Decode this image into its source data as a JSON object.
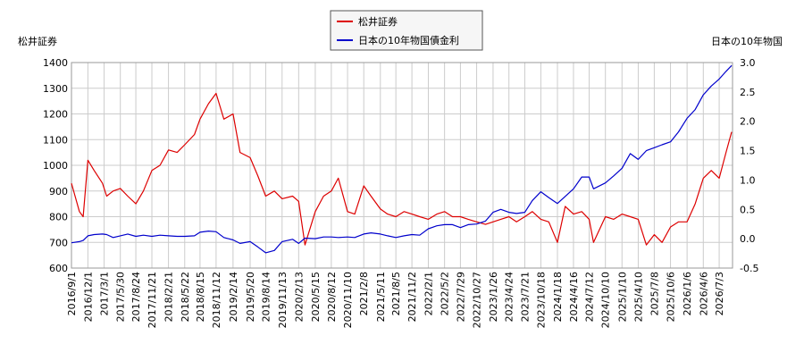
{
  "chart_data": {
    "type": "line",
    "legend": {
      "placement": "top-center",
      "entries": [
        "松井証券",
        "日本の10年物国債金利"
      ]
    },
    "left_axis_title": "松井証券",
    "right_axis_title": "日本の10年物国",
    "ylim_left": [
      600,
      1400
    ],
    "yticks_left": [
      "600",
      "700",
      "800",
      "900",
      "1000",
      "1100",
      "1200",
      "1300",
      "1400"
    ],
    "ylim_right": [
      -0.5,
      3.0
    ],
    "yticks_right": [
      "-0.5",
      "0.0",
      "0.5",
      "1.0",
      "1.5",
      "2.0",
      "2.5",
      "3.0"
    ],
    "x_range": [
      "2016-09-01",
      "2026-09-15"
    ],
    "xticks": [
      "2016/9/1",
      "2016/12/1",
      "2017/3/1",
      "2017/5/30",
      "2017/8/24",
      "2017/11/21",
      "2018/2/21",
      "2018/5/22",
      "2018/8/15",
      "2018/11/12",
      "2019/2/14",
      "2019/5/20",
      "2019/8/14",
      "2019/11/13",
      "2020/2/13",
      "2020/5/15",
      "2020/8/12",
      "2020/11/10",
      "2021/2/8",
      "2021/5/11",
      "2021/8/5",
      "2021/11/2",
      "2022/2/1",
      "2022/5/2",
      "2022/7/29",
      "2022/10/27",
      "2023/1/26",
      "2023/4/24",
      "2023/7/21",
      "2023/10/18",
      "2024/1/18",
      "2024/4/16",
      "2024/7/12",
      "2024/10/10",
      "2025/1/10",
      "2025/4/10",
      "2025/7/8",
      "2025/10/6",
      "2026/1/6",
      "2026/4/6",
      "2026/7/3"
    ],
    "grid": true,
    "colors": {
      "stock": "#dd0000",
      "rate": "#0000cc"
    },
    "series": [
      {
        "name": "松井証券",
        "axis": "left",
        "x": [
          "2016-09-01",
          "2016-10-15",
          "2016-11-05",
          "2016-12-01",
          "2017-01-05",
          "2017-02-20",
          "2017-03-15",
          "2017-04-20",
          "2017-05-30",
          "2017-07-10",
          "2017-08-24",
          "2017-10-05",
          "2017-11-21",
          "2018-01-05",
          "2018-02-21",
          "2018-04-10",
          "2018-05-22",
          "2018-07-15",
          "2018-08-15",
          "2018-10-01",
          "2018-11-12",
          "2018-12-25",
          "2019-02-14",
          "2019-03-25",
          "2019-05-20",
          "2019-07-01",
          "2019-08-14",
          "2019-10-01",
          "2019-11-13",
          "2020-01-10",
          "2020-02-13",
          "2020-03-19",
          "2020-05-15",
          "2020-06-30",
          "2020-08-12",
          "2020-09-20",
          "2020-11-10",
          "2020-12-20",
          "2021-02-08",
          "2021-03-20",
          "2021-05-11",
          "2021-06-20",
          "2021-08-05",
          "2021-09-20",
          "2021-11-02",
          "2021-12-15",
          "2022-02-01",
          "2022-03-20",
          "2022-05-02",
          "2022-06-15",
          "2022-07-29",
          "2022-09-10",
          "2022-10-27",
          "2022-12-15",
          "2023-01-26",
          "2023-03-10",
          "2023-04-24",
          "2023-06-05",
          "2023-07-21",
          "2023-09-01",
          "2023-10-18",
          "2023-12-01",
          "2024-01-18",
          "2024-03-01",
          "2024-04-16",
          "2024-06-01",
          "2024-07-12",
          "2024-08-05",
          "2024-10-10",
          "2024-11-25",
          "2025-01-10",
          "2025-02-25",
          "2025-04-10",
          "2025-05-25",
          "2025-07-08",
          "2025-08-20",
          "2025-10-06",
          "2025-11-20",
          "2026-01-06",
          "2026-02-20",
          "2026-04-06",
          "2026-05-20",
          "2026-07-03",
          "2026-08-10",
          "2026-09-10"
        ],
        "values": [
          930,
          820,
          800,
          1020,
          980,
          930,
          880,
          900,
          910,
          880,
          850,
          900,
          980,
          1000,
          1060,
          1050,
          1080,
          1120,
          1180,
          1240,
          1280,
          1180,
          1200,
          1050,
          1030,
          960,
          880,
          900,
          870,
          880,
          860,
          690,
          820,
          880,
          900,
          950,
          820,
          810,
          920,
          880,
          830,
          810,
          800,
          820,
          810,
          800,
          790,
          810,
          820,
          800,
          800,
          790,
          780,
          770,
          780,
          790,
          800,
          780,
          800,
          820,
          790,
          780,
          700,
          840,
          810,
          820,
          790,
          700,
          800,
          790,
          810,
          800,
          790,
          690,
          730,
          700,
          760,
          780,
          780,
          850,
          950,
          980,
          950,
          1050,
          1130
        ]
      },
      {
        "name": "日本の10年物国債金利",
        "axis": "right",
        "x": [
          "2016-09-01",
          "2016-10-15",
          "2016-11-05",
          "2016-12-01",
          "2017-01-05",
          "2017-02-20",
          "2017-03-15",
          "2017-04-20",
          "2017-05-30",
          "2017-07-10",
          "2017-08-24",
          "2017-10-05",
          "2017-11-21",
          "2018-01-05",
          "2018-02-21",
          "2018-04-10",
          "2018-05-22",
          "2018-07-15",
          "2018-08-15",
          "2018-10-01",
          "2018-11-12",
          "2018-12-25",
          "2019-02-14",
          "2019-03-25",
          "2019-05-20",
          "2019-07-01",
          "2019-08-14",
          "2019-10-01",
          "2019-11-13",
          "2020-01-10",
          "2020-02-13",
          "2020-03-19",
          "2020-05-15",
          "2020-06-30",
          "2020-08-12",
          "2020-09-20",
          "2020-11-10",
          "2020-12-20",
          "2021-02-08",
          "2021-03-20",
          "2021-05-11",
          "2021-06-20",
          "2021-08-05",
          "2021-09-20",
          "2021-11-02",
          "2021-12-15",
          "2022-02-01",
          "2022-03-20",
          "2022-05-02",
          "2022-06-15",
          "2022-07-29",
          "2022-09-10",
          "2022-10-27",
          "2022-12-15",
          "2023-01-26",
          "2023-03-10",
          "2023-04-24",
          "2023-06-05",
          "2023-07-21",
          "2023-09-01",
          "2023-10-18",
          "2023-12-01",
          "2024-01-18",
          "2024-03-01",
          "2024-04-16",
          "2024-06-01",
          "2024-07-12",
          "2024-08-05",
          "2024-10-10",
          "2024-11-25",
          "2025-01-10",
          "2025-02-25",
          "2025-04-10",
          "2025-05-25",
          "2025-07-08",
          "2025-08-20",
          "2025-10-06",
          "2025-11-20",
          "2026-01-06",
          "2026-02-20",
          "2026-04-06",
          "2026-05-20",
          "2026-07-03",
          "2026-08-10",
          "2026-09-10"
        ],
        "values": [
          -0.07,
          -0.05,
          -0.03,
          0.05,
          0.07,
          0.08,
          0.07,
          0.02,
          0.05,
          0.08,
          0.04,
          0.06,
          0.04,
          0.06,
          0.05,
          0.04,
          0.04,
          0.05,
          0.11,
          0.13,
          0.12,
          0.02,
          -0.02,
          -0.08,
          -0.05,
          -0.14,
          -0.24,
          -0.2,
          -0.05,
          -0.01,
          -0.08,
          0.01,
          0.0,
          0.03,
          0.03,
          0.02,
          0.03,
          0.02,
          0.08,
          0.1,
          0.08,
          0.05,
          0.02,
          0.05,
          0.07,
          0.06,
          0.17,
          0.22,
          0.24,
          0.24,
          0.19,
          0.24,
          0.25,
          0.3,
          0.45,
          0.5,
          0.45,
          0.43,
          0.45,
          0.65,
          0.8,
          0.7,
          0.6,
          0.72,
          0.85,
          1.05,
          1.05,
          0.85,
          0.95,
          1.07,
          1.2,
          1.45,
          1.35,
          1.5,
          1.55,
          1.6,
          1.65,
          1.82,
          2.05,
          2.2,
          2.45,
          2.6,
          2.72,
          2.85,
          2.95
        ]
      }
    ]
  }
}
